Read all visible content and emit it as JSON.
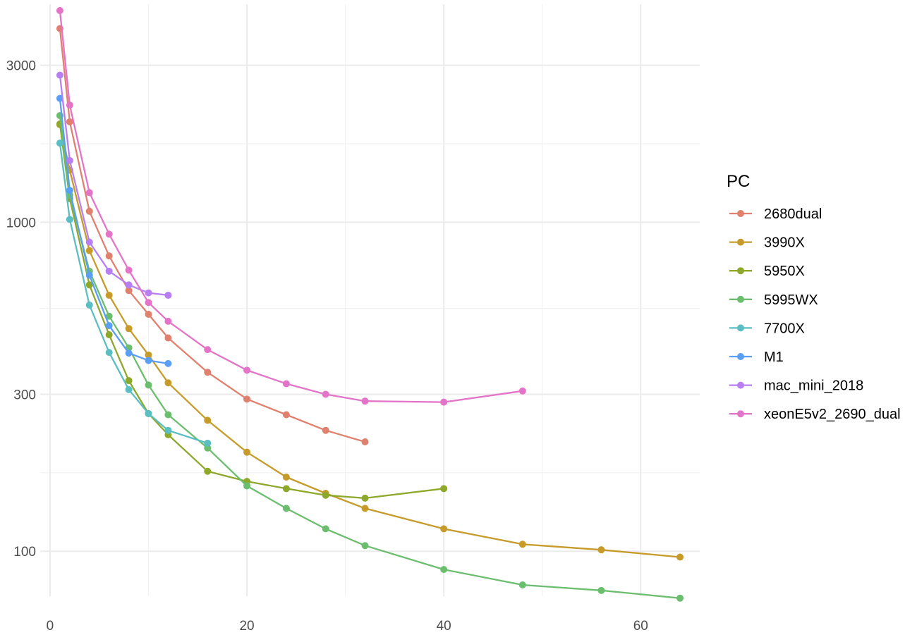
{
  "chart_data": {
    "type": "line",
    "title": "",
    "xlabel": "",
    "ylabel": "",
    "y_scale": "log10",
    "xlim": [
      -1,
      66
    ],
    "ylim": [
      73,
      4600
    ],
    "x_ticks": [
      0,
      20,
      40,
      60
    ],
    "y_ticks": [
      100,
      300,
      1000,
      3000
    ],
    "grid": true,
    "legend": {
      "title": "PC",
      "position": "right"
    },
    "series": [
      {
        "name": "2680dual",
        "color": "#E0806F",
        "x": [
          1,
          2,
          4,
          6,
          8,
          10,
          12,
          16,
          20,
          24,
          28,
          32
        ],
        "y": [
          3880,
          2020,
          1080,
          790,
          620,
          525,
          445,
          350,
          290,
          260,
          233,
          215
        ]
      },
      {
        "name": "3990X",
        "color": "#C69B2A",
        "x": [
          1,
          2,
          4,
          6,
          8,
          10,
          12,
          16,
          20,
          24,
          28,
          32,
          40,
          48,
          56,
          64
        ],
        "y": [
          1980,
          1440,
          820,
          600,
          475,
          395,
          325,
          250,
          200,
          168,
          150,
          135,
          117,
          105,
          101,
          96
        ]
      },
      {
        "name": "5950X",
        "color": "#8DA82A",
        "x": [
          1,
          2,
          4,
          6,
          8,
          10,
          12,
          16,
          20,
          24,
          28,
          32,
          40
        ],
        "y": [
          1990,
          1180,
          645,
          455,
          330,
          262,
          226,
          175,
          163,
          155,
          148,
          145,
          155
        ]
      },
      {
        "name": "5995WX",
        "color": "#6BBE6D",
        "x": [
          1,
          2,
          4,
          6,
          8,
          10,
          12,
          16,
          20,
          24,
          28,
          32,
          40,
          48,
          56,
          64
        ],
        "y": [
          2110,
          1210,
          710,
          518,
          415,
          320,
          260,
          206,
          158,
          135,
          117,
          104,
          88,
          79,
          76,
          72
        ]
      },
      {
        "name": "7700X",
        "color": "#5BBEC2",
        "x": [
          1,
          2,
          4,
          6,
          8,
          10,
          12,
          16
        ],
        "y": [
          1740,
          1020,
          560,
          402,
          310,
          262,
          233,
          213
        ]
      },
      {
        "name": "M1",
        "color": "#5B9FF5",
        "x": [
          1,
          2,
          4,
          6,
          8,
          10,
          12
        ],
        "y": [
          2380,
          1250,
          690,
          485,
          400,
          380,
          372
        ]
      },
      {
        "name": "mac_mini_2018",
        "color": "#B77FF2",
        "x": [
          1,
          2,
          4,
          6,
          8,
          10,
          12
        ],
        "y": [
          2800,
          1540,
          870,
          710,
          645,
          610,
          600
        ]
      },
      {
        "name": "xeonE5v2_2690_dual",
        "color": "#E374C8",
        "x": [
          1,
          2,
          4,
          6,
          8,
          10,
          12,
          16,
          20,
          24,
          28,
          32,
          40,
          48
        ],
        "y": [
          4400,
          2270,
          1230,
          920,
          715,
          570,
          500,
          410,
          355,
          323,
          300,
          286,
          284,
          307
        ]
      }
    ]
  }
}
